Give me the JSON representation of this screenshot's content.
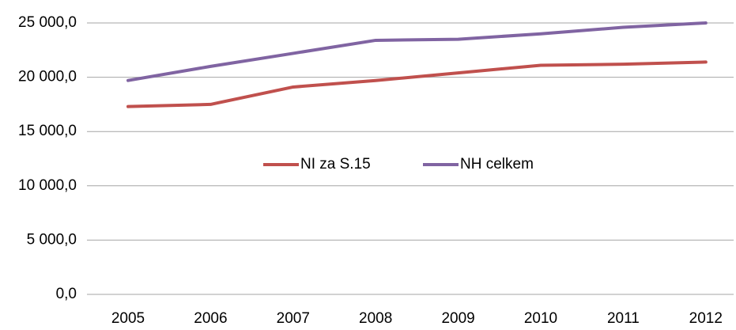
{
  "chart_data": {
    "type": "line",
    "categories": [
      "2005",
      "2006",
      "2007",
      "2008",
      "2009",
      "2010",
      "2011",
      "2012"
    ],
    "series": [
      {
        "name": "NI za S.15",
        "color": "#c0504d",
        "values": [
          17300,
          17500,
          19100,
          19700,
          20400,
          21100,
          21200,
          21400
        ]
      },
      {
        "name": "NH celkem",
        "color": "#8064a2",
        "values": [
          19700,
          21000,
          22200,
          23400,
          23500,
          24000,
          24600,
          25000
        ]
      }
    ],
    "ylim": [
      0,
      25000
    ],
    "yticks": [
      {
        "value": 0,
        "label": "0,0"
      },
      {
        "value": 5000,
        "label": "5 000,0"
      },
      {
        "value": 10000,
        "label": "10 000,0"
      },
      {
        "value": 15000,
        "label": "15 000,0"
      },
      {
        "value": 20000,
        "label": "20 000,0"
      },
      {
        "value": 25000,
        "label": "25 000,0"
      }
    ],
    "grid": true,
    "legend": "center"
  }
}
